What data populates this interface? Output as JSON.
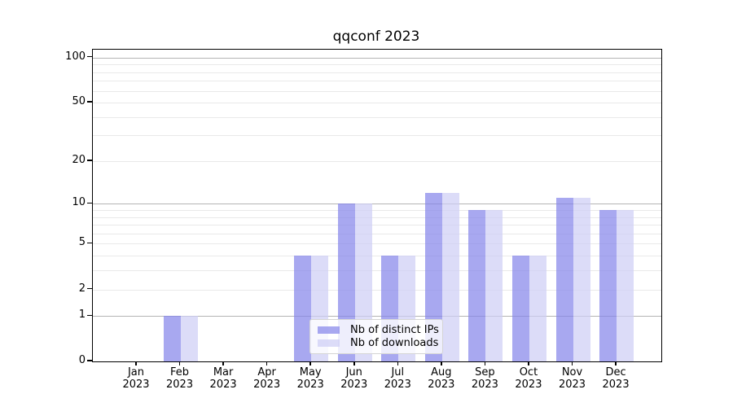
{
  "chart_data": {
    "type": "bar",
    "title": "qqconf 2023",
    "categories": [
      "Jan",
      "Feb",
      "Mar",
      "Apr",
      "May",
      "Jun",
      "Jul",
      "Aug",
      "Sep",
      "Oct",
      "Nov",
      "Dec"
    ],
    "category_year": "2023",
    "series": [
      {
        "name": "Nb of distinct IPs",
        "color": "#8383ea",
        "values": [
          0,
          1,
          0,
          0,
          4,
          10,
          4,
          12,
          9,
          4,
          11,
          9
        ]
      },
      {
        "name": "Nb of downloads",
        "color": "#cdcdf5",
        "values": [
          0,
          1,
          0,
          0,
          4,
          10,
          4,
          12,
          9,
          4,
          11,
          9
        ]
      }
    ],
    "xlabel": "",
    "ylabel": "",
    "yscale": "log1p",
    "ylim": [
      0,
      114
    ],
    "ytick_labels": [
      "0",
      "1",
      "2",
      "5",
      "10",
      "20",
      "50",
      "100"
    ],
    "ytick_values": [
      0,
      1,
      2,
      5,
      10,
      20,
      50,
      100
    ],
    "major_gridline_values": [
      1,
      10,
      100
    ],
    "minor_gridline_values": [
      2,
      3,
      4,
      5,
      6,
      7,
      8,
      9,
      20,
      30,
      40,
      50,
      60,
      70,
      80,
      90
    ],
    "grid": "on",
    "legend_position": "inside-lower-center",
    "colors": {
      "bar_distinct_ips": "#8383ea",
      "bar_downloads": "#cdcdf5",
      "major_grid": "#b4b4b4",
      "minor_grid": "#e9e9e9",
      "axis": "#000000",
      "background": "#ffffff"
    }
  }
}
